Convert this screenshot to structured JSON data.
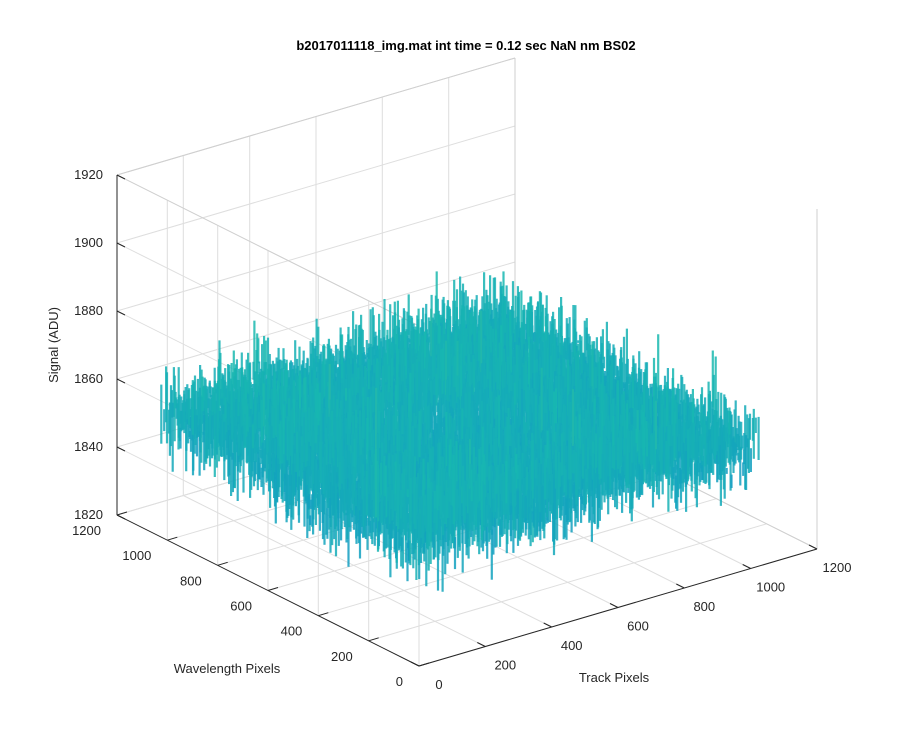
{
  "chart_data": {
    "type": "surface3d",
    "title": "b2017011118_img.mat int time = 0.12 sec  NaN nm BS02",
    "xlabel": "Track Pixels",
    "ylabel": "Wavelength Pixels",
    "zlabel": "Signal (ADU)",
    "xlim": [
      0,
      1200
    ],
    "ylim": [
      0,
      1200
    ],
    "zlim": [
      1820,
      1920
    ],
    "x_ticks": [
      "0",
      "200",
      "400",
      "600",
      "800",
      "1000",
      "1200"
    ],
    "y_ticks": [
      "0",
      "200",
      "400",
      "600",
      "800",
      "1000",
      "1200"
    ],
    "z_ticks": [
      "1820",
      "1840",
      "1860",
      "1880",
      "1900",
      "1920"
    ],
    "surface": {
      "x_range": [
        0,
        1024
      ],
      "y_range": [
        0,
        1024
      ],
      "mean_signal": 1856,
      "min_signal": 1825,
      "max_signal": 1912,
      "colormap": "parula",
      "color_low": "#0a7ad8",
      "color_mid": "#18b8b0",
      "color_high": "#e7c03a"
    },
    "grid": true,
    "box": "open"
  }
}
